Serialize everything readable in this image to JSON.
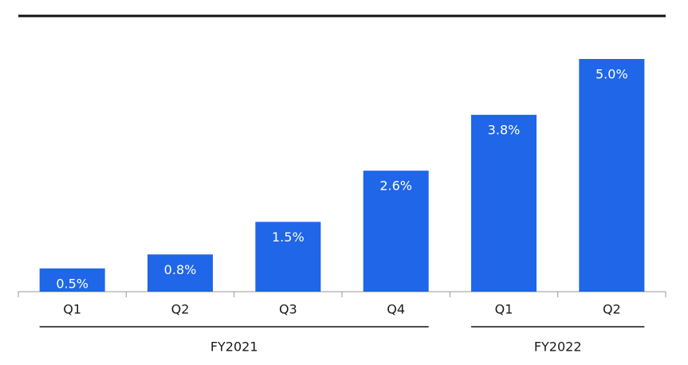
{
  "chart_data": {
    "type": "bar",
    "groups": [
      {
        "label": "FY2021",
        "categories": [
          "Q1",
          "Q2",
          "Q3",
          "Q4"
        ]
      },
      {
        "label": "FY2022",
        "categories": [
          "Q1",
          "Q2"
        ]
      }
    ],
    "values": [
      0.5,
      0.8,
      1.5,
      2.6,
      3.8,
      5.0
    ],
    "value_labels": [
      "0.5%",
      "0.8%",
      "1.5%",
      "2.6%",
      "3.8%",
      "5.0%"
    ],
    "color": "#1f66e8"
  }
}
